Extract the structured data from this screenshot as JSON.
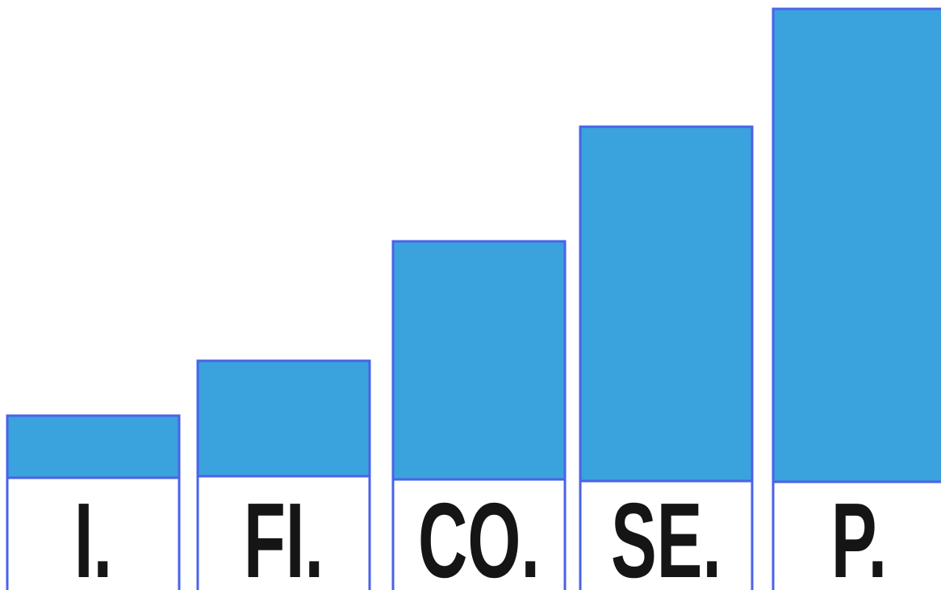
{
  "chart_data": {
    "type": "bar",
    "title": "",
    "xlabel": "",
    "ylabel": "",
    "categories": [
      "I.",
      "FI.",
      "CO.",
      "SE.",
      "P."
    ],
    "values": [
      1,
      2,
      4,
      6,
      8
    ],
    "ylim": [
      0,
      8
    ],
    "grid": false,
    "legend": "none",
    "colors": {
      "bar_fill": "#3aa2dc",
      "bar_outline": "#4a63e8",
      "label_text": "#151515",
      "background": "#ffffff"
    }
  }
}
